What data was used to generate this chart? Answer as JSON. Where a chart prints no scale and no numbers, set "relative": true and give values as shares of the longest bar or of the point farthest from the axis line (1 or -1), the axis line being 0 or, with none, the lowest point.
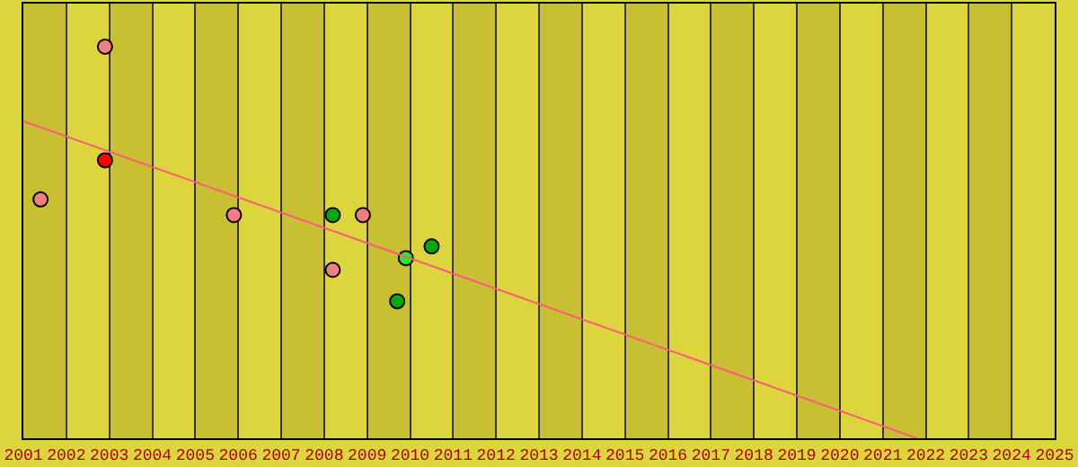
{
  "chart_data": {
    "type": "scatter",
    "relative": true,
    "marker": "circle",
    "grid": "x",
    "tick_labels": "x",
    "xlim": [
      2001,
      2025
    ],
    "xticks": [
      2001,
      2002,
      2003,
      2004,
      2005,
      2006,
      2007,
      2008,
      2009,
      2010,
      2011,
      2012,
      2013,
      2014,
      2015,
      2016,
      2017,
      2018,
      2019,
      2020,
      2021,
      2022,
      2023,
      2024,
      2025
    ],
    "series": [
      {
        "color": "#f08080",
        "x": [
          2001.4,
          2002.9,
          2005.9,
          2008.2,
          2008.9
        ],
        "values": [
          0.61,
          1.0,
          0.57,
          0.43,
          0.57
        ]
      },
      {
        "color": "#ff0000",
        "x": [
          2002.9
        ],
        "values": [
          0.71
        ]
      },
      {
        "color": "#00aa00",
        "x": [
          2008.2,
          2009.7,
          2010.5
        ],
        "values": [
          0.57,
          0.35,
          0.49
        ]
      },
      {
        "color": "#22ee22",
        "x": [
          2009.9
        ],
        "values": [
          0.46
        ]
      },
      {
        "type": "line",
        "marker": "none",
        "color": "#ff5a78",
        "x": [
          2001,
          2021.8
        ],
        "values": [
          0.81,
          0.0
        ]
      }
    ],
    "bands": [
      {
        "axis": "x",
        "from": 2001,
        "to": 2002,
        "color": "#c9bf32"
      },
      {
        "axis": "x",
        "from": 2003,
        "to": 2004,
        "color": "#c9bf32"
      },
      {
        "axis": "x",
        "from": 2005,
        "to": 2006,
        "color": "#c9bf32"
      },
      {
        "axis": "x",
        "from": 2007,
        "to": 2008,
        "color": "#c9bf32"
      },
      {
        "axis": "x",
        "from": 2009,
        "to": 2010,
        "color": "#c9bf32"
      },
      {
        "axis": "x",
        "from": 2011,
        "to": 2012,
        "color": "#c9bf32"
      },
      {
        "axis": "x",
        "from": 2013,
        "to": 2014,
        "color": "#c9bf32"
      },
      {
        "axis": "x",
        "from": 2015,
        "to": 2016,
        "color": "#c9bf32"
      },
      {
        "axis": "x",
        "from": 2017,
        "to": 2018,
        "color": "#c9bf32"
      },
      {
        "axis": "x",
        "from": 2019,
        "to": 2020,
        "color": "#c9bf32"
      },
      {
        "axis": "x",
        "from": 2021,
        "to": 2022,
        "color": "#c9bf32"
      },
      {
        "axis": "x",
        "from": 2023,
        "to": 2024,
        "color": "#c9bf32"
      }
    ]
  }
}
